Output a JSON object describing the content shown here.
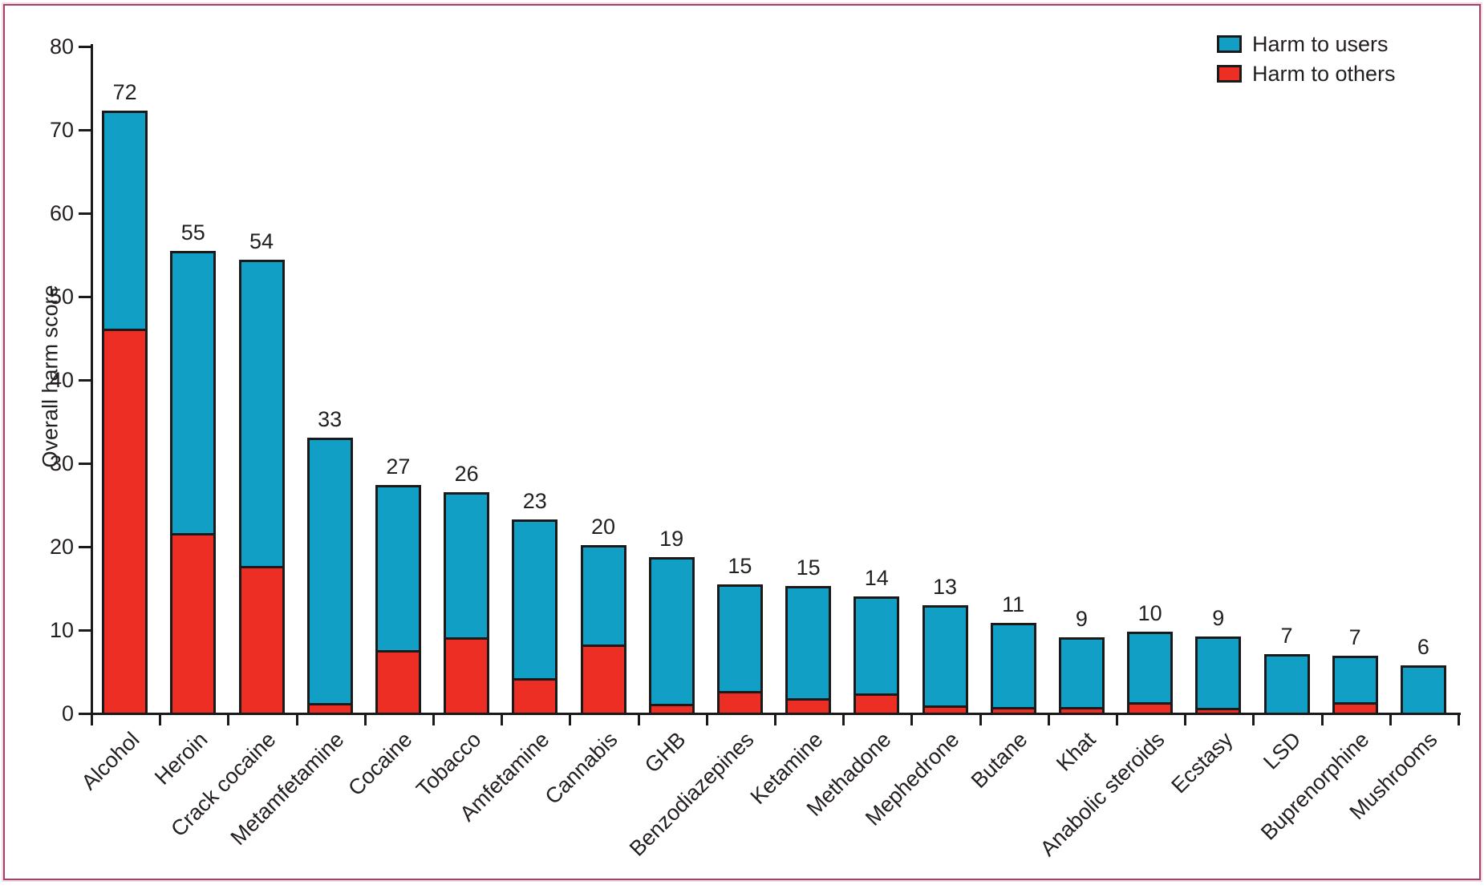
{
  "figure": {
    "ylabel": "Overall harm score",
    "frame_color": "#a2426b"
  },
  "legend": {
    "users_label": "Harm to users",
    "others_label": "Harm to others"
  },
  "colors": {
    "users": "#119fc5",
    "others": "#ed2e24",
    "outline": "#1a1a1a",
    "text": "#231f20"
  },
  "chart_data": {
    "type": "bar",
    "stacked": true,
    "title": "",
    "xlabel": "",
    "ylabel": "Overall harm score",
    "ylim": [
      0,
      80
    ],
    "y_ticks": [
      0,
      10,
      20,
      30,
      40,
      50,
      60,
      70,
      80
    ],
    "grid": false,
    "legend_position": "top-right",
    "categories": [
      "Alcohol",
      "Heroin",
      "Crack cocaine",
      "Metamfetamine",
      "Cocaine",
      "Tobacco",
      "Amfetamine",
      "Cannabis",
      "GHB",
      "Benzodiazepines",
      "Ketamine",
      "Methadone",
      "Mephedrone",
      "Butane",
      "Khat",
      "Anabolic steroids",
      "Ecstasy",
      "LSD",
      "Buprenorphine",
      "Mushrooms"
    ],
    "total_labels": [
      "72",
      "55",
      "54",
      "33",
      "27",
      "26",
      "23",
      "20",
      "19",
      "15",
      "15",
      "14",
      "13",
      "11",
      "9",
      "10",
      "9",
      "7",
      "7",
      "6"
    ],
    "series": [
      {
        "name": "Harm to users",
        "color": "#119fc5",
        "values": [
          26.2,
          33.8,
          36.7,
          31.8,
          19.8,
          17.4,
          19.0,
          11.9,
          17.6,
          12.8,
          13.5,
          11.6,
          12.0,
          10.1,
          8.4,
          8.5,
          8.6,
          7.0,
          5.6,
          5.7
        ]
      },
      {
        "name": "Harm to others",
        "color": "#ed2e24",
        "values": [
          46.0,
          21.6,
          17.6,
          1.2,
          7.5,
          9.0,
          4.2,
          8.2,
          1.1,
          2.6,
          1.7,
          2.3,
          0.9,
          0.7,
          0.6,
          1.2,
          0.5,
          0,
          1.2,
          0
        ]
      }
    ]
  }
}
